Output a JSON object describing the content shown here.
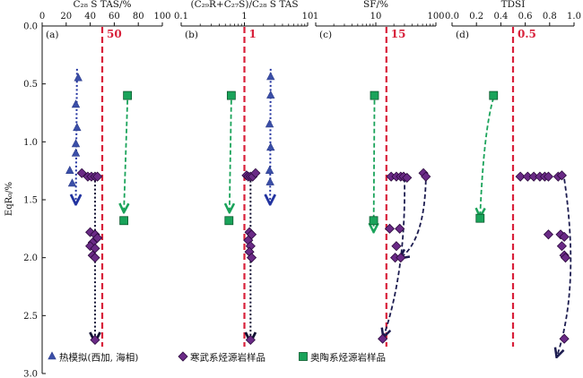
{
  "chart_data": {
    "type": "scatter",
    "ylabel": "EqR₀/%",
    "ylim": [
      0.0,
      3.0
    ],
    "y_ticks": [
      "0.0",
      "0.5",
      "1.0",
      "1.5",
      "2.0",
      "2.5",
      "3.0"
    ],
    "y_tick_values": [
      0.0,
      0.5,
      1.0,
      1.5,
      2.0,
      2.5,
      3.0
    ],
    "colors": {
      "thermal": "#3b4fa8",
      "cambrian": "#6a2a86",
      "ordovician": "#1aa35a",
      "reference_line": "#d8203a",
      "trend_thermal": "#2233a0",
      "trend_cambrian_a": "#111133",
      "trend_cambrian": "#1c1c50",
      "trend_ordovician": "#1aa35a"
    },
    "legend": {
      "position": "bottom",
      "entries": [
        {
          "key": "thermal",
          "label": "热模拟(西加, 海相)",
          "marker": "triangle"
        },
        {
          "key": "cambrian",
          "label": "寒武系烃源岩样品",
          "marker": "diamond"
        },
        {
          "key": "ordovician",
          "label": "奥陶系烃源岩样品",
          "marker": "square"
        }
      ]
    },
    "panels": [
      {
        "letter": "(a)",
        "title": "C₂₈ S TAS/%",
        "scale": "linear",
        "xlim": [
          0,
          100
        ],
        "x_ticks": [
          "0",
          "20",
          "40",
          "60",
          "80",
          "100"
        ],
        "x_tick_values": [
          0,
          20,
          40,
          60,
          80,
          100
        ],
        "reference": {
          "value": 50,
          "label": "50"
        },
        "series": [
          {
            "key": "thermal",
            "points": [
              [
                30,
                0.45
              ],
              [
                28,
                0.68
              ],
              [
                29,
                0.88
              ],
              [
                28,
                1.02
              ],
              [
                28,
                1.1
              ],
              [
                23,
                1.25
              ],
              [
                25,
                1.36
              ]
            ]
          },
          {
            "key": "cambrian",
            "points": [
              [
                33,
                1.27
              ],
              [
                38,
                1.3
              ],
              [
                41,
                1.3
              ],
              [
                44,
                1.3
              ],
              [
                46,
                1.3
              ],
              [
                40,
                1.78
              ],
              [
                44,
                1.8
              ],
              [
                46,
                1.83
              ],
              [
                42,
                1.87
              ],
              [
                40,
                1.9
              ],
              [
                44,
                1.92
              ],
              [
                42,
                1.98
              ],
              [
                44,
                2.0
              ],
              [
                44,
                2.71
              ]
            ]
          },
          {
            "key": "ordovician",
            "points": [
              [
                71,
                0.6
              ],
              [
                68,
                1.68
              ]
            ]
          }
        ],
        "trends": [
          {
            "key": "trend_thermal",
            "from": [
              29,
              0.37
            ],
            "to": [
              28,
              1.53
            ]
          },
          {
            "key": "trend_cambrian_a",
            "from": [
              44,
              1.3
            ],
            "to": [
              44,
              2.72
            ]
          },
          {
            "key": "trend_ordovician",
            "from": [
              71,
              0.64
            ],
            "to": [
              68,
              1.6
            ]
          }
        ]
      },
      {
        "letter": "(b)",
        "title": "(C₂₉R+C₂₇S)/C₂₈ S TAS",
        "scale": "log",
        "xlim": [
          0.1,
          10
        ],
        "x_ticks": [
          "0.1",
          "1",
          "10"
        ],
        "x_tick_values": [
          0.1,
          1,
          10
        ],
        "reference": {
          "value": 1,
          "label": "1"
        },
        "series": [
          {
            "key": "thermal",
            "points": [
              [
                2.6,
                0.44
              ],
              [
                2.6,
                0.6
              ],
              [
                2.5,
                0.85
              ],
              [
                2.6,
                1.05
              ],
              [
                2.5,
                1.25
              ],
              [
                2.55,
                1.35
              ]
            ]
          },
          {
            "key": "cambrian",
            "points": [
              [
                1.08,
                1.29
              ],
              [
                1.15,
                1.3
              ],
              [
                1.25,
                1.3
              ],
              [
                1.35,
                1.3
              ],
              [
                1.5,
                1.27
              ],
              [
                1.2,
                1.78
              ],
              [
                1.3,
                1.8
              ],
              [
                1.15,
                1.85
              ],
              [
                1.25,
                1.9
              ],
              [
                1.2,
                1.95
              ],
              [
                1.3,
                2.0
              ],
              [
                1.25,
                2.71
              ]
            ]
          },
          {
            "key": "ordovician",
            "points": [
              [
                0.62,
                0.6
              ],
              [
                0.57,
                1.68
              ]
            ]
          }
        ],
        "trends": [
          {
            "key": "trend_thermal",
            "from": [
              2.6,
              0.37
            ],
            "to": [
              2.55,
              1.53
            ]
          },
          {
            "key": "trend_cambrian_a",
            "from": [
              1.25,
              1.3
            ],
            "to": [
              1.25,
              2.72
            ]
          },
          {
            "key": "trend_ordovician",
            "from": [
              0.62,
              0.64
            ],
            "to": [
              0.58,
              1.6
            ]
          }
        ]
      },
      {
        "letter": "(c)",
        "title": "SF/%",
        "scale": "log",
        "xlim": [
          1,
          100
        ],
        "x_ticks": [
          "1",
          "10",
          "100"
        ],
        "x_tick_values": [
          1,
          10,
          100
        ],
        "reference": {
          "value": 15,
          "label": "15"
        },
        "series": [
          {
            "key": "cambrian",
            "points": [
              [
                18,
                1.3
              ],
              [
                22,
                1.3
              ],
              [
                26,
                1.3
              ],
              [
                29,
                1.3
              ],
              [
                33,
                1.31
              ],
              [
                62,
                1.27
              ],
              [
                68,
                1.3
              ],
              [
                17,
                1.75
              ],
              [
                25,
                1.75
              ],
              [
                22,
                1.9
              ],
              [
                21,
                2.0
              ],
              [
                26,
                2.0
              ],
              [
                13,
                2.7
              ]
            ]
          },
          {
            "key": "ordovician",
            "points": [
              [
                9.5,
                0.6
              ],
              [
                9.2,
                1.68
              ]
            ]
          }
        ],
        "trends": [
          {
            "key": "trend_ordovician",
            "from": [
              9.5,
              0.64
            ],
            "to": [
              9.2,
              1.77
            ]
          },
          {
            "key": "trend_cambrian",
            "from": [
              30,
              1.31
            ],
            "to": [
              13.5,
              2.68
            ],
            "curve": [
              32,
              2.1
            ]
          },
          {
            "key": "trend_cambrian",
            "from": [
              68,
              1.33
            ],
            "to": [
              26,
              2.0
            ],
            "curve": [
              64,
              1.85
            ]
          }
        ]
      },
      {
        "letter": "(d)",
        "title": "TDSI",
        "scale": "linear",
        "xlim": [
          0.0,
          1.0
        ],
        "x_ticks": [
          "0.0",
          "0.2",
          "0.4",
          "0.6",
          "0.8",
          "1.0"
        ],
        "x_tick_values": [
          0.0,
          0.2,
          0.4,
          0.6,
          0.8,
          1.0
        ],
        "reference": {
          "value": 0.5,
          "label": "0.5"
        },
        "series": [
          {
            "key": "cambrian",
            "points": [
              [
                0.56,
                1.3
              ],
              [
                0.62,
                1.3
              ],
              [
                0.67,
                1.3
              ],
              [
                0.72,
                1.3
              ],
              [
                0.76,
                1.3
              ],
              [
                0.79,
                1.3
              ],
              [
                0.87,
                1.3
              ],
              [
                0.9,
                1.29
              ],
              [
                0.79,
                1.8
              ],
              [
                0.89,
                1.8
              ],
              [
                0.92,
                1.82
              ],
              [
                0.9,
                1.9
              ],
              [
                0.92,
                1.98
              ],
              [
                0.93,
                2.0
              ],
              [
                0.92,
                2.7
              ]
            ]
          },
          {
            "key": "ordovician",
            "points": [
              [
                0.34,
                0.6
              ],
              [
                0.23,
                1.66
              ]
            ]
          }
        ],
        "trends": [
          {
            "key": "trend_ordovician",
            "from": [
              0.34,
              0.62
            ],
            "to": [
              0.23,
              1.64
            ],
            "curve": [
              0.26,
              0.9
            ]
          },
          {
            "key": "trend_cambrian",
            "from": [
              0.92,
              1.32
            ],
            "to": [
              0.86,
              2.85
            ],
            "curve": [
              1.05,
              2.25
            ]
          }
        ]
      }
    ]
  }
}
